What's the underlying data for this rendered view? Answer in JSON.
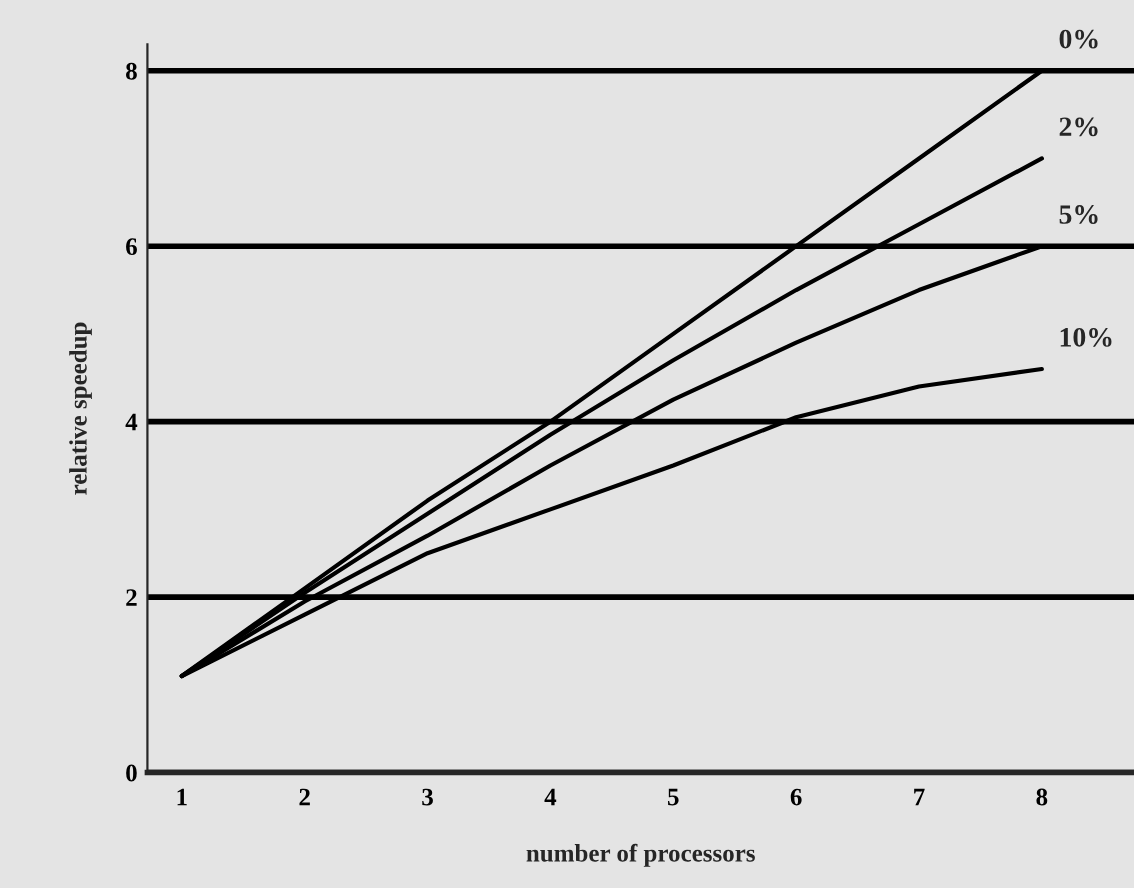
{
  "chart_data": {
    "type": "line",
    "xlabel": "number of processors",
    "ylabel": "relative speedup",
    "x": [
      1,
      2,
      3,
      4,
      5,
      6,
      7,
      8
    ],
    "series": [
      {
        "name": "0%",
        "color": "#000000",
        "values": [
          1.1,
          2.1,
          3.1,
          4.0,
          5.0,
          6.0,
          7.0,
          8.0
        ]
      },
      {
        "name": "2%",
        "color": "#000000",
        "values": [
          1.1,
          2.05,
          2.95,
          3.85,
          4.7,
          5.5,
          6.25,
          7.0
        ]
      },
      {
        "name": "5%",
        "color": "#000000",
        "values": [
          1.1,
          1.95,
          2.7,
          3.5,
          4.25,
          4.9,
          5.5,
          6.0
        ]
      },
      {
        "name": "10%",
        "color": "#000000",
        "values": [
          1.1,
          1.8,
          2.5,
          3.0,
          3.5,
          4.05,
          4.4,
          4.6
        ]
      }
    ],
    "xlim": [
      0.72,
      8.75
    ],
    "ylim": [
      0,
      8.3
    ],
    "xticks": [
      1,
      2,
      3,
      4,
      5,
      6,
      7,
      8
    ],
    "yticks": [
      0,
      2,
      4,
      6,
      8
    ],
    "grid": "y",
    "legend": false,
    "marker": "none",
    "line_style": "solid"
  }
}
